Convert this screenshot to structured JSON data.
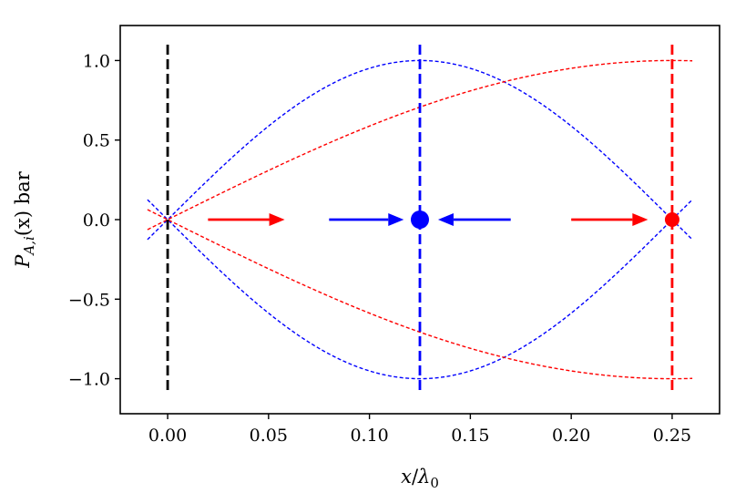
{
  "chart_data": {
    "type": "line",
    "title": "",
    "xlabel": "x/λ0",
    "ylabel": "P_{A,i}(x) bar",
    "ylabel_parts": {
      "P": "P",
      "sub": "A,i",
      "rest": "(x) bar"
    },
    "xlabel_parts": {
      "x": "x",
      "slash": "/",
      "lambda": "λ",
      "sub": "0"
    },
    "xlim": [
      -0.0235,
      0.2735
    ],
    "ylim": [
      -1.22,
      1.22
    ],
    "xticks": [
      0.0,
      0.05,
      0.1,
      0.15,
      0.2,
      0.25
    ],
    "xtick_labels": [
      "0.00",
      "0.05",
      "0.10",
      "0.15",
      "0.20",
      "0.25"
    ],
    "yticks": [
      1.0,
      0.5,
      0.0,
      -0.5,
      -1.0
    ],
    "ytick_labels": [
      "1.0",
      "0.5",
      "0.0",
      "−0.5",
      "−1.0"
    ],
    "grid": false,
    "legend": "none",
    "colors": {
      "blue": "#0000ff",
      "red": "#ff0000",
      "black": "#000000"
    },
    "curves": [
      {
        "color": "blue",
        "function": "sin(4*pi*x)",
        "x_range": [
          -0.01,
          0.26
        ]
      },
      {
        "color": "blue",
        "function": "-sin(4*pi*x)",
        "x_range": [
          -0.01,
          0.26
        ]
      },
      {
        "color": "red",
        "function": "sin(2*pi*x)",
        "x_range": [
          -0.01,
          0.26
        ]
      },
      {
        "color": "red",
        "function": "-sin(2*pi*x)",
        "x_range": [
          -0.01,
          0.26
        ]
      }
    ],
    "vertical_lines": [
      {
        "x": 0.0,
        "color": "black",
        "y_range": [
          -1.1,
          1.1
        ]
      },
      {
        "x": 0.125,
        "color": "blue",
        "y_range": [
          -1.1,
          1.1
        ]
      },
      {
        "x": 0.25,
        "color": "red",
        "y_range": [
          -1.1,
          1.1
        ]
      }
    ],
    "points": [
      {
        "x": 0.125,
        "y": 0.0,
        "color": "blue",
        "size": "large"
      },
      {
        "x": 0.25,
        "y": 0.0,
        "color": "red",
        "size": "medium"
      }
    ],
    "arrows": [
      {
        "x_start": 0.02,
        "x_end": 0.058,
        "y": 0.0,
        "color": "red"
      },
      {
        "x_start": 0.08,
        "x_end": 0.117,
        "y": 0.0,
        "color": "blue"
      },
      {
        "x_start": 0.17,
        "x_end": 0.134,
        "y": 0.0,
        "color": "blue"
      },
      {
        "x_start": 0.2,
        "x_end": 0.238,
        "y": 0.0,
        "color": "red"
      }
    ]
  }
}
